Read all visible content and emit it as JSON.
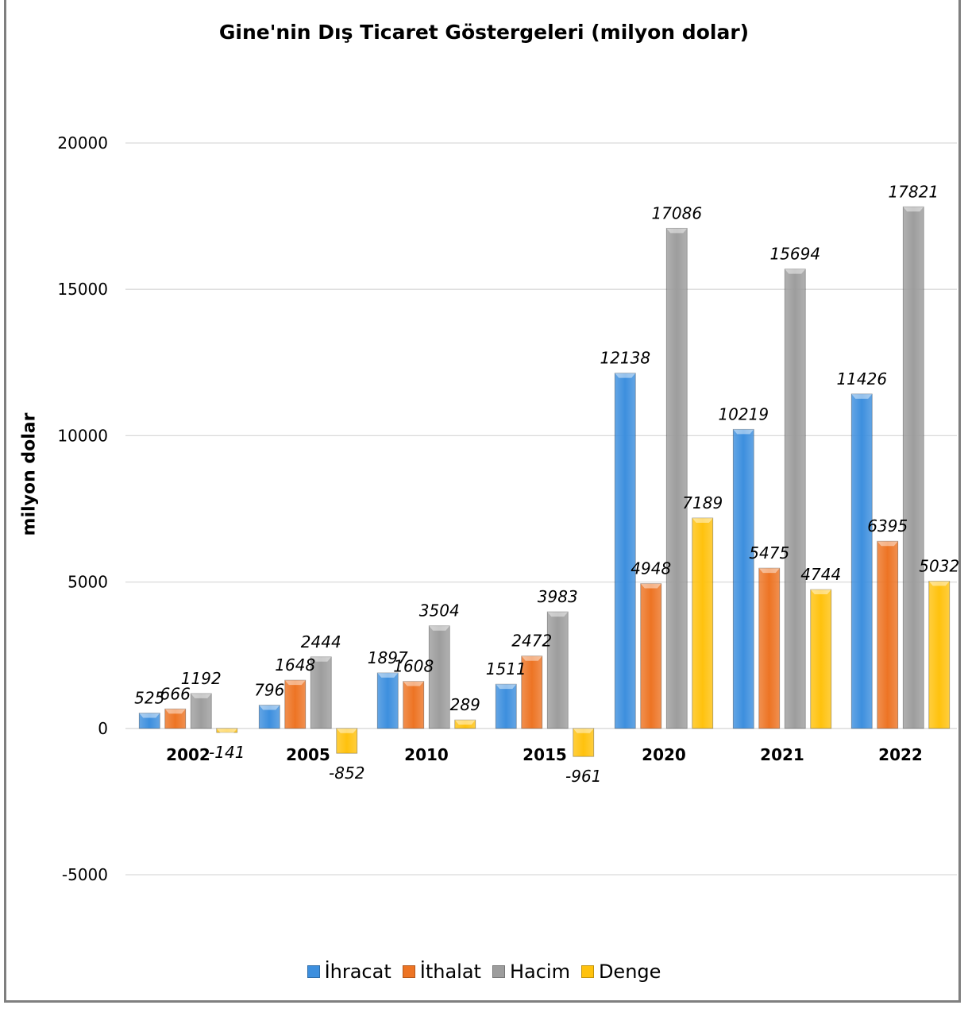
{
  "chart_data": {
    "type": "bar",
    "title": "Gine'nin Dış Ticaret Göstergeleri  (milyon dolar)",
    "ylabel": "milyon dolar",
    "xlabel": "",
    "categories": [
      "2002",
      "2005",
      "2010",
      "2015",
      "2020",
      "2021",
      "2022"
    ],
    "series": [
      {
        "name": "İhracat",
        "color": "#3d8fde",
        "values": [
          525,
          796,
          1897,
          1511,
          12138,
          10219,
          11426
        ]
      },
      {
        "name": "İthalat",
        "color": "#ed7424",
        "values": [
          666,
          1648,
          1608,
          2472,
          4948,
          5475,
          6395
        ]
      },
      {
        "name": "Hacim",
        "color": "#9d9d9d",
        "values": [
          1192,
          2444,
          3504,
          3983,
          17086,
          15694,
          17821
        ]
      },
      {
        "name": "Denge",
        "color": "#ffc20e",
        "values": [
          -141,
          -852,
          289,
          -961,
          7189,
          4744,
          5032
        ]
      }
    ],
    "series_data_labels": [
      [
        "525",
        "796",
        "1897",
        "1511",
        "12138",
        "10219",
        "11426"
      ],
      [
        "666",
        "1648",
        "1608",
        "2472",
        "4948",
        "5475",
        "6395"
      ],
      [
        "1192",
        "2444",
        "3504",
        "3983",
        "17086",
        "15694",
        "17821"
      ],
      [
        "-141",
        "-852",
        "289",
        "-961",
        "7189",
        "4744",
        "5032"
      ]
    ],
    "yticks": [
      "-5000",
      "0",
      "5000",
      "10000",
      "15000",
      "20000"
    ],
    "ylim": [
      -5000,
      20000
    ],
    "grid": true,
    "legend_position": "bottom"
  }
}
